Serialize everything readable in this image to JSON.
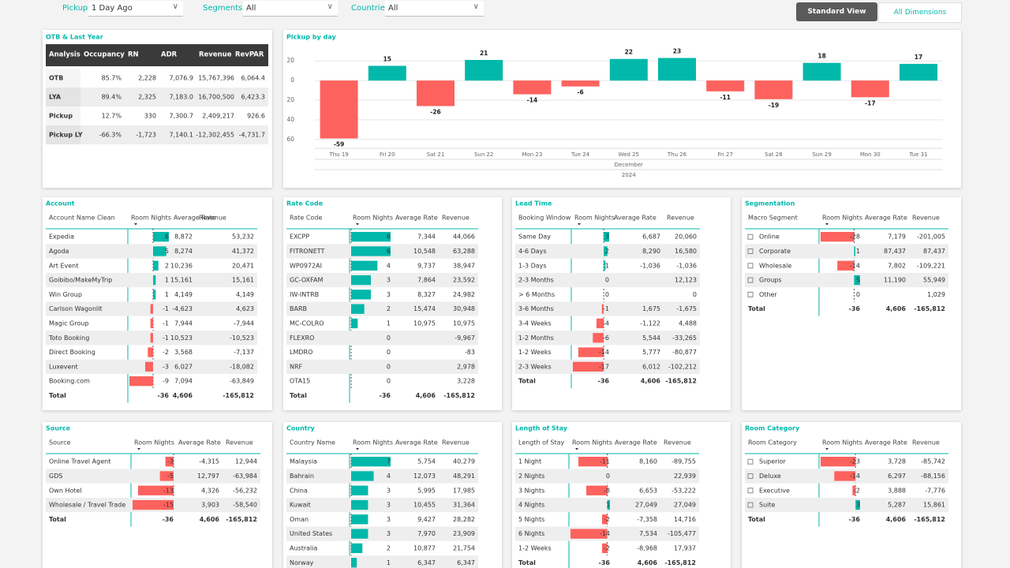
{
  "filters": [
    {
      "label": "Pickup:",
      "value": "1 Day Ago"
    },
    {
      "label": "Segments:",
      "value": "All"
    },
    {
      "label": "Countries:",
      "value": "All"
    }
  ],
  "buttons": [
    "Standard View",
    "All Dimensions"
  ],
  "otb": {
    "title": "OTB & Last Year",
    "headers": [
      "Analysis",
      "Occupancy",
      "RN",
      "ADR",
      "Revenue",
      "RevPAR"
    ],
    "rows": [
      [
        "OTB",
        "85.7%",
        "2,228",
        "7,076.9",
        "15,767,396",
        "6,064.4"
      ],
      [
        "LYA",
        "89.4%",
        "2,325",
        "7,183.0",
        "16,700,500",
        "6,423.3"
      ],
      [
        "Pickup",
        "12.7%",
        "330",
        "7,300.7",
        "2,409,217",
        "926.6"
      ],
      [
        "Pickup LY",
        "-66.3%",
        "-1,723",
        "7,140.1",
        "-12,302,455",
        "-4,731.7"
      ]
    ]
  },
  "chart_data": {
    "type": "bar",
    "title": "Pickup by day",
    "categories": [
      "Thu 19",
      "Fri 20",
      "Sat 21",
      "Sun 22",
      "Mon 23",
      "Tue 24",
      "Wed 25",
      "Thu 26",
      "Fri 27",
      "Sat 28",
      "Sun 29",
      "Mon 30",
      "Tue 31"
    ],
    "x_group_labels": [
      "December",
      "2024"
    ],
    "values": [
      -59,
      15,
      -26,
      21,
      -14,
      -6,
      22,
      23,
      -11,
      -19,
      18,
      -17,
      17
    ],
    "color": "#01b8aa",
    "negative_color": "#fd625e",
    "ylim": [
      -65,
      25
    ],
    "yticks": [
      {
        "value": -60,
        "label": "60"
      },
      {
        "value": -40,
        "label": "40"
      },
      {
        "value": -20,
        "label": "20"
      },
      0,
      20
    ],
    "grid": true
  },
  "tables": [
    {
      "title": "Account",
      "headers": [
        "Account Name Clean",
        "Room Nights",
        "Average Rate",
        "Revenue"
      ],
      "rows": [
        [
          "Expedia",
          6,
          "8,872",
          "53,232"
        ],
        [
          "Agoda",
          5,
          "8,274",
          "41,372"
        ],
        [
          "Art Event",
          2,
          "10,236",
          "20,471"
        ],
        [
          "Goibibo/MakeMyTrip",
          1,
          "15,161",
          "15,161"
        ],
        [
          "Win Group",
          1,
          "4,149",
          "4,149"
        ],
        [
          "Carlson Wagonlit",
          -1,
          "-4,623",
          "4,623"
        ],
        [
          "Magic Group",
          -1,
          "7,944",
          "-7,944"
        ],
        [
          "Toto Booking",
          -1,
          "10,523",
          "-10,523"
        ],
        [
          "Direct Booking",
          -2,
          "3,568",
          "-7,137"
        ],
        [
          "Luxevent",
          -3,
          "6,027",
          "-18,082"
        ],
        [
          "Booking.com",
          -9,
          "7,094",
          "-63,849"
        ]
      ],
      "total": [
        "Total",
        -36,
        "4,606",
        "-165,812"
      ]
    },
    {
      "title": "Rate Code",
      "headers": [
        "Rate Code",
        "Room Nights",
        "Average Rate",
        "Revenue"
      ],
      "rows": [
        [
          "EXCPP",
          6,
          "7,344",
          "44,066"
        ],
        [
          "FITRONETT",
          6,
          "10,548",
          "63,288"
        ],
        [
          "WP0972AI",
          4,
          "9,737",
          "38,947"
        ],
        [
          "GC-OXFAM",
          3,
          "7,864",
          "23,592"
        ],
        [
          "IW-INTRB",
          3,
          "8,327",
          "24,982"
        ],
        [
          "BARB",
          2,
          "15,474",
          "30,948"
        ],
        [
          "MC-COLRO",
          1,
          "10,975",
          "10,975"
        ],
        [
          "FLEXRO",
          0,
          null,
          "-9,967"
        ],
        [
          "LMDRO",
          0,
          null,
          "-83"
        ],
        [
          "NRF",
          0,
          null,
          "2,978"
        ],
        [
          "OTA15",
          0,
          null,
          "3,228"
        ]
      ],
      "total": [
        "Total",
        -36,
        "4,606",
        "-165,812"
      ]
    },
    {
      "title": "Lead Time",
      "headers": [
        "Booking Window",
        "Room Nights",
        "Average Rate",
        "Revenue"
      ],
      "rows": [
        [
          "Same Day",
          3,
          "6,687",
          "20,060"
        ],
        [
          "4-6 Days",
          2,
          "8,290",
          "16,580"
        ],
        [
          "1-3 Days",
          1,
          "-1,036",
          "-1,036"
        ],
        [
          "2-3 Months",
          0,
          null,
          "12,123"
        ],
        [
          "> 6 Months",
          0,
          null,
          "0"
        ],
        [
          "3-6 Months",
          -1,
          "1,675",
          "-1,675"
        ],
        [
          "3-4 Weeks",
          -4,
          "-1,122",
          "4,488"
        ],
        [
          "1-2 Months",
          -6,
          "5,544",
          "-33,265"
        ],
        [
          "1-2 Weeks",
          -14,
          "5,777",
          "-80,877"
        ],
        [
          "2-3 Weeks",
          -17,
          "6,012",
          "-102,212"
        ]
      ],
      "total": [
        "Total",
        -36,
        "4,606",
        "-165,812"
      ]
    },
    {
      "title": "Segmentation",
      "headers": [
        "Macro Segment",
        "Room Nights",
        "Average Rate",
        "Revenue"
      ],
      "rows": [
        [
          "Online",
          -28,
          "7,179",
          "-201,005"
        ],
        [
          "Corporate",
          1,
          "87,437",
          "87,437"
        ],
        [
          "Wholesale",
          -14,
          "7,802",
          "-109,221"
        ],
        [
          "Groups",
          5,
          "11,190",
          "55,949"
        ],
        [
          "Other",
          0,
          null,
          "1,029"
        ]
      ],
      "total": [
        "Total",
        -36,
        "4,606",
        "-165,812"
      ]
    },
    {
      "title": "Source",
      "headers": [
        "Source",
        "Room Nights",
        "Average Rate",
        "Revenue"
      ],
      "rows": [
        [
          "Online Travel Agent",
          -3,
          "-4,315",
          "12,944"
        ],
        [
          "GDS",
          -5,
          "12,797",
          "-63,984"
        ],
        [
          "Own Hotel",
          -13,
          "4,326",
          "-56,232"
        ],
        [
          "Wholesale / Travel Trade",
          -15,
          "3,903",
          "-58,540"
        ]
      ],
      "total": [
        "Total",
        -36,
        "4,606",
        "-165,812"
      ]
    },
    {
      "title": "Country",
      "headers": [
        "Country Name",
        "Room Nights",
        "Average Rate",
        "Revenue"
      ],
      "rows": [
        [
          "Malaysia",
          7,
          "5,754",
          "40,279"
        ],
        [
          "Bahrain",
          4,
          "12,073",
          "48,291"
        ],
        [
          "China",
          3,
          "5,995",
          "17,985"
        ],
        [
          "Kuwait",
          3,
          "10,455",
          "31,364"
        ],
        [
          "Oman",
          3,
          "9,427",
          "28,282"
        ],
        [
          "United States",
          3,
          "7,970",
          "23,909"
        ],
        [
          "Australia",
          2,
          "10,877",
          "21,754"
        ],
        [
          "Norway",
          1,
          "6,347",
          "6,347"
        ]
      ]
    },
    {
      "title": "Length of Stay",
      "headers": [
        "Length of Stay",
        "Room Nights",
        "Average Rate",
        "Revenue"
      ],
      "rows": [
        [
          "1 Night",
          -11,
          "8,160",
          "-89,755"
        ],
        [
          "2 Nights",
          0,
          null,
          "22,939"
        ],
        [
          "3 Nights",
          -8,
          "6,653",
          "-53,222"
        ],
        [
          "4 Nights",
          1,
          "27,049",
          "27,049"
        ],
        [
          "5 Nights",
          -2,
          "-7,358",
          "14,716"
        ],
        [
          "6 Nights",
          -14,
          "7,534",
          "-105,477"
        ],
        [
          "1-2 Weeks",
          -2,
          "-8,968",
          "17,937"
        ]
      ],
      "total": [
        "Total",
        -36,
        "4,606",
        "-165,812"
      ]
    },
    {
      "title": "Room Category",
      "headers": [
        "Room Category",
        "Room Nights",
        "Average Rate",
        "Revenue"
      ],
      "rows": [
        [
          "Superior",
          -23,
          "3,728",
          "-85,742"
        ],
        [
          "Deluxe",
          -14,
          "6,297",
          "-88,156"
        ],
        [
          "Executive",
          -2,
          "3,888",
          "-7,776"
        ],
        [
          "Suite",
          3,
          "5,287",
          "15,861"
        ]
      ],
      "total": [
        "Total",
        -36,
        "4,606",
        "-165,812"
      ]
    }
  ]
}
